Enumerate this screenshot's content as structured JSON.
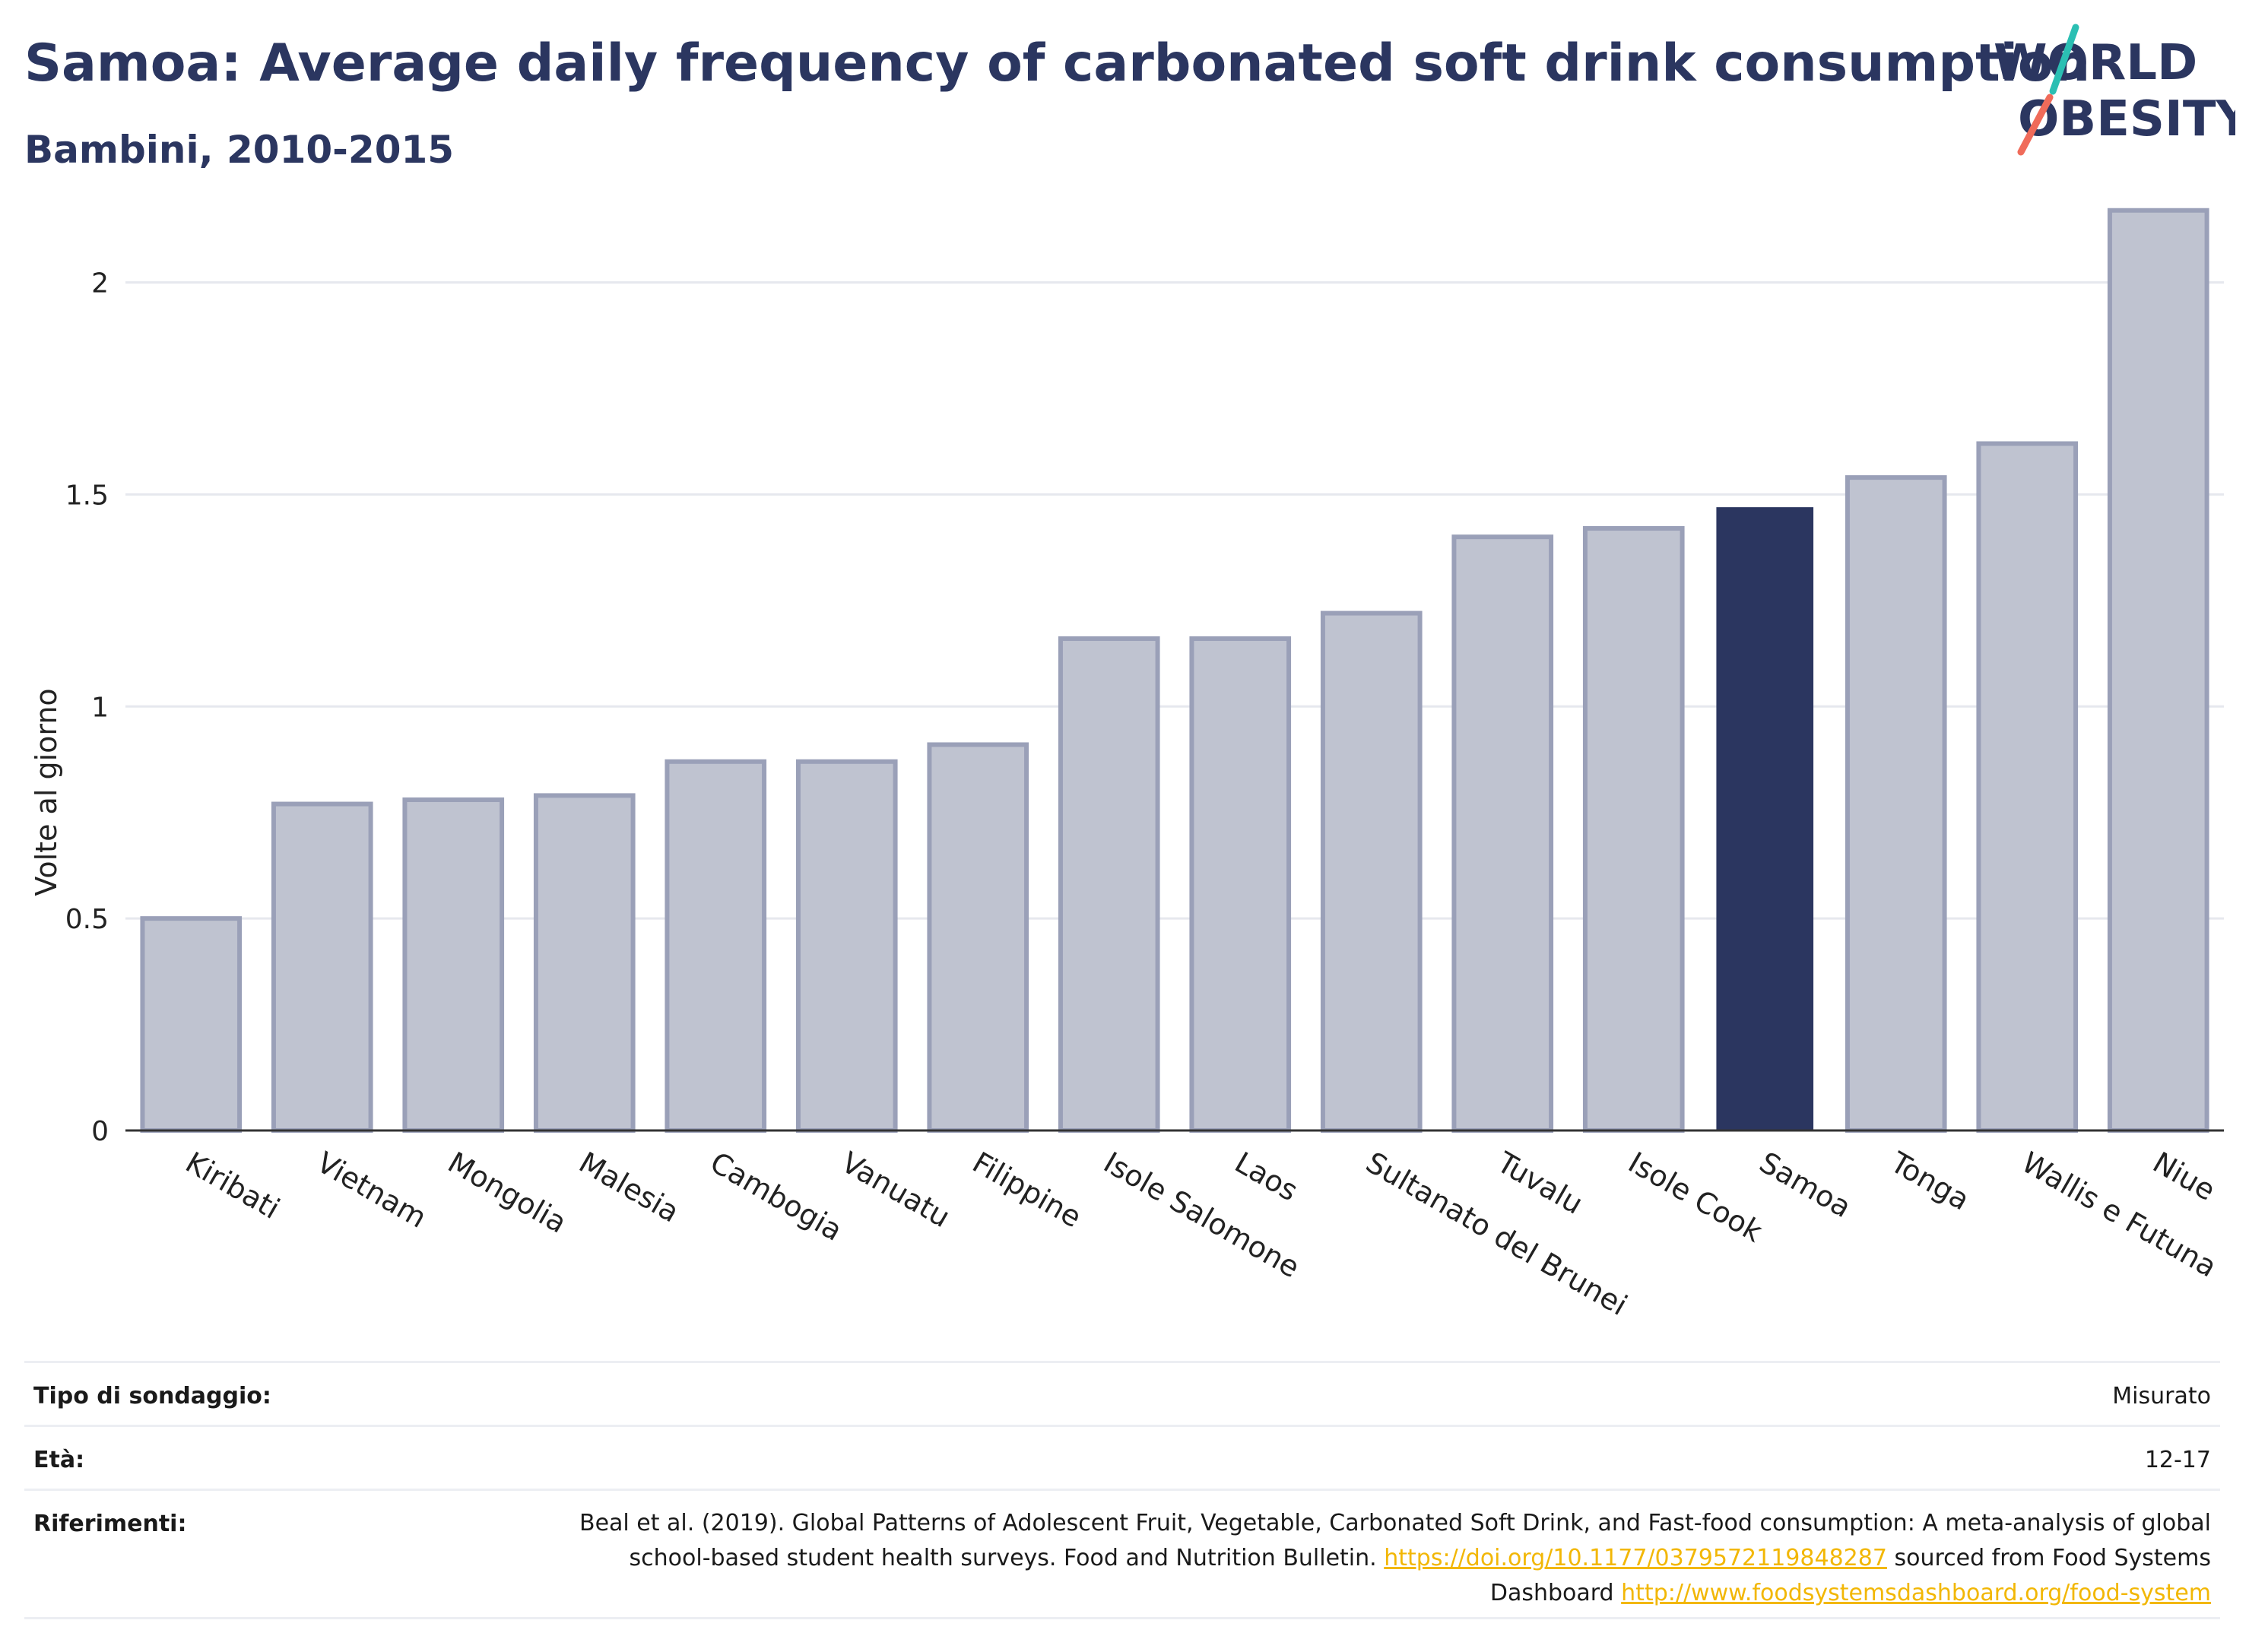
{
  "header": {
    "title": "Samoa: Average daily frequency of carbonated soft drink consumption",
    "subtitle": "Bambini, 2010-2015"
  },
  "logo": {
    "line1": "WORLD",
    "line2": "OBESITY",
    "accent_teal": "#2bbfb3",
    "accent_coral": "#f06b5a"
  },
  "chart_data": {
    "type": "bar",
    "ylabel": "Volte al giorno",
    "ylim": [
      0,
      2.2
    ],
    "yticks": [
      0,
      0.5,
      1,
      1.5,
      2
    ],
    "ytick_labels": [
      "0",
      "0.5",
      "1",
      "1.5",
      "2"
    ],
    "grid": true,
    "categories": [
      "Kiribati",
      "Vietnam",
      "Mongolia",
      "Malesia",
      "Cambogia",
      "Vanuatu",
      "Filippine",
      "Isole Salomone",
      "Laos",
      "Sultanato del Brunei",
      "Tuvalu",
      "Isole Cook",
      "Samoa",
      "Tonga",
      "Wallis e Futuna",
      "Niue"
    ],
    "values": [
      0.5,
      0.77,
      0.78,
      0.79,
      0.87,
      0.87,
      0.91,
      1.16,
      1.16,
      1.22,
      1.4,
      1.42,
      1.47,
      1.54,
      1.62,
      2.17
    ],
    "highlight": "Samoa",
    "colors": {
      "bar": "#bfc3d0",
      "bar_border": "#9aa0b8",
      "highlight": "#2b3660"
    }
  },
  "meta": {
    "survey_label": "Tipo di sondaggio:",
    "survey_value": "Misurato",
    "age_label": "Età:",
    "age_value": "12-17",
    "ref_label": "Riferimenti:",
    "ref_text_1": "Beal et al. (2019). Global Patterns of Adolescent Fruit, Vegetable, Carbonated Soft Drink, and Fast-food consumption: A meta-analysis of global school-based student health surveys. Food and Nutrition Bulletin.",
    "ref_link_1": "https://doi.org/10.1177/0379572119848287",
    "ref_text_2": "sourced from Food Systems Dashboard",
    "ref_link_2": "http://www.foodsystemsdashboard.org/food-system"
  }
}
